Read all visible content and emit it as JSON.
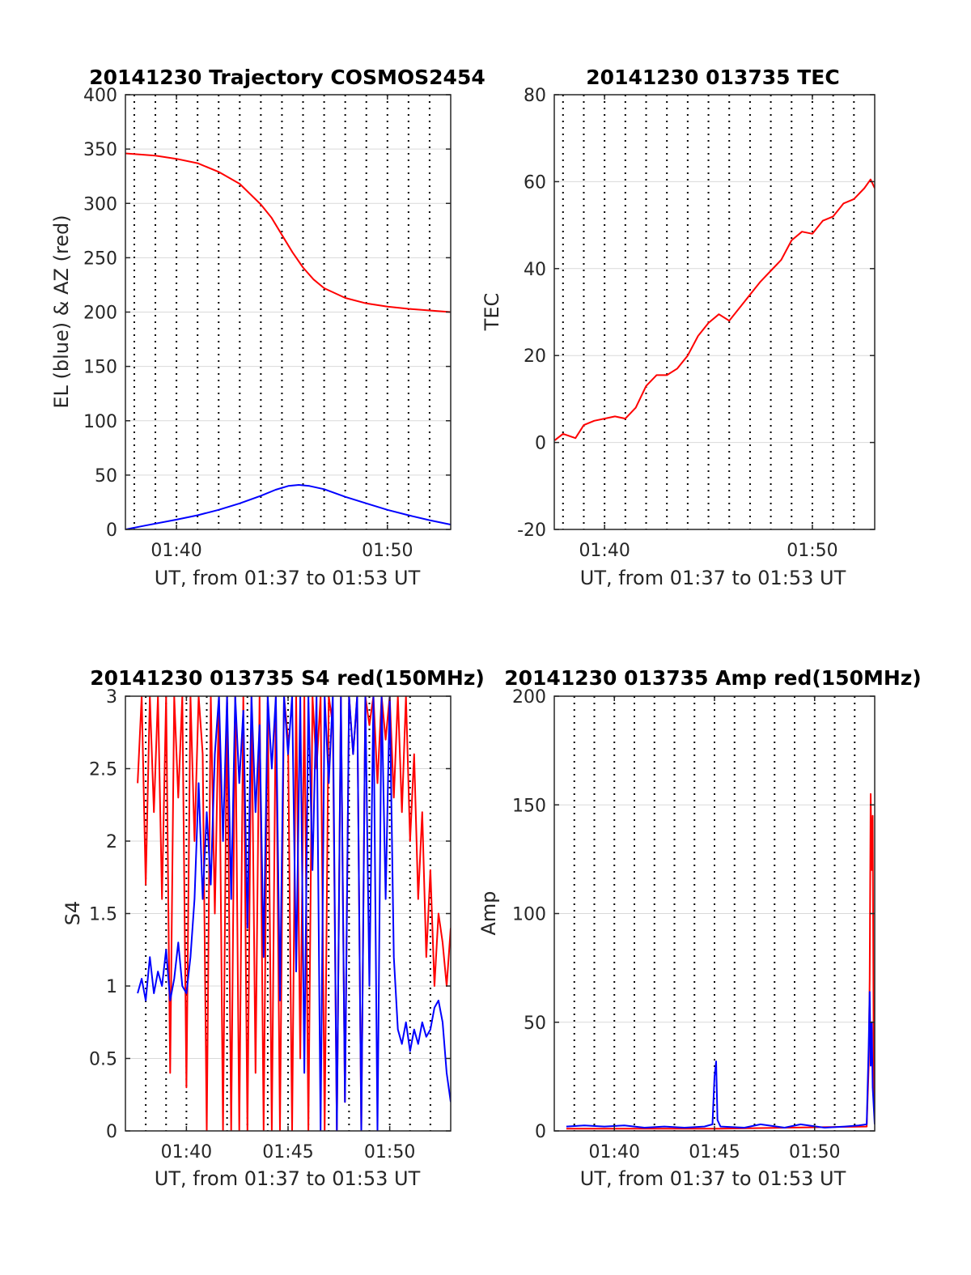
{
  "figure": {
    "background": "#ffffff"
  },
  "colors": {
    "red": "#ff0000",
    "blue": "#0000ff",
    "grid": "#d9d9d9",
    "axis": "#262626"
  },
  "panels": [
    {
      "title": "20141230 Trajectory COSMOS2454",
      "xlabel": "UT, from 01:37 to 01:53 UT",
      "ylabel": "EL (blue) & AZ (red)"
    },
    {
      "title": "20141230 013735 TEC",
      "xlabel": "UT, from 01:37 to 01:53 UT",
      "ylabel": "TEC"
    },
    {
      "title": "20141230 013735 S4 red(150MHz)",
      "xlabel": "UT, from 01:37 to 01:53 UT",
      "ylabel": "S4"
    },
    {
      "title": "20141230 013735 Amp red(150MHz)",
      "xlabel": "UT, from 01:37 to 01:53 UT",
      "ylabel": "Amp"
    }
  ],
  "chart_data": [
    {
      "type": "line",
      "title": "20141230 Trajectory COSMOS2454",
      "xlabel": "UT, from 01:37 to 01:53 UT",
      "ylabel": "EL (blue) & AZ (red)",
      "x_unit": "minutes of hour 01 UT",
      "xlim": [
        37.58,
        53.0
      ],
      "ylim": [
        0,
        400
      ],
      "xticks": [
        {
          "v": 40,
          "label": "01:40"
        },
        {
          "v": 50,
          "label": "01:50"
        }
      ],
      "yticks": [
        0,
        50,
        100,
        150,
        200,
        250,
        300,
        350,
        400
      ],
      "dotted_vlines": [
        38.0,
        39.0,
        40.0,
        41.0,
        42.0,
        43.0,
        44.0,
        45.0,
        46.0,
        47.0,
        48.0,
        49.0,
        50.0,
        51.0,
        52.0
      ],
      "grid": true,
      "series": [
        {
          "color": "#ff0000",
          "x": [
            37.58,
            39,
            40,
            41,
            42,
            43,
            44,
            44.5,
            45,
            45.5,
            46,
            46.5,
            47,
            48,
            49,
            50,
            51,
            52,
            53
          ],
          "y": [
            346,
            344,
            341,
            337,
            329,
            318,
            299,
            287,
            271,
            255,
            241,
            230,
            222,
            213,
            208,
            205,
            203,
            201.5,
            200
          ]
        },
        {
          "color": "#0000ff",
          "x": [
            37.58,
            38.5,
            40,
            41,
            42,
            43,
            44,
            44.7,
            45.3,
            45.8,
            46.3,
            47,
            48,
            49,
            50,
            51,
            52,
            53
          ],
          "y": [
            0,
            3.5,
            9,
            13,
            18,
            24,
            31,
            36.5,
            40,
            41,
            40,
            37,
            30,
            24,
            18,
            13,
            8.5,
            4.5
          ]
        }
      ]
    },
    {
      "type": "line",
      "title": "20141230 013735 TEC",
      "xlabel": "UT, from 01:37 to 01:53 UT",
      "ylabel": "TEC",
      "x_unit": "minutes of hour 01 UT",
      "xlim": [
        37.58,
        53.0
      ],
      "ylim": [
        -20,
        80
      ],
      "xticks": [
        {
          "v": 40,
          "label": "01:40"
        },
        {
          "v": 50,
          "label": "01:50"
        }
      ],
      "yticks": [
        -20,
        0,
        20,
        40,
        60,
        80
      ],
      "dotted_vlines": [
        38.0,
        39.0,
        40.0,
        41.0,
        42.0,
        43.0,
        44.0,
        45.0,
        46.0,
        47.0,
        48.0,
        49.0,
        50.0,
        51.0,
        52.0
      ],
      "grid": true,
      "series": [
        {
          "color": "#ff0000",
          "x": [
            37.6,
            38.0,
            38.6,
            39.0,
            39.5,
            40.0,
            40.5,
            41.0,
            41.5,
            42.0,
            42.5,
            43.0,
            43.5,
            44.0,
            44.5,
            45.0,
            45.5,
            46.0,
            46.5,
            47.0,
            47.5,
            48.0,
            48.5,
            49.0,
            49.5,
            50.0,
            50.5,
            51.0,
            51.5,
            52.0,
            52.5,
            52.8,
            53.0
          ],
          "y": [
            0.5,
            2,
            1,
            4,
            5,
            5.5,
            6,
            5.5,
            8,
            13,
            15.5,
            15.5,
            17,
            20,
            24.5,
            27.5,
            29.5,
            28,
            31,
            34,
            37,
            39.5,
            42,
            46.5,
            48.5,
            48,
            51,
            52,
            55,
            56,
            58.5,
            60.5,
            58.5
          ]
        }
      ]
    },
    {
      "type": "line",
      "title": "20141230 013735 S4 red(150MHz)",
      "xlabel": "UT, from 01:37 to 01:53 UT",
      "ylabel": "S4",
      "x_unit": "minutes of hour 01 UT",
      "xlim": [
        37.0,
        53.0
      ],
      "ylim": [
        0,
        3
      ],
      "xticks": [
        {
          "v": 40,
          "label": "01:40"
        },
        {
          "v": 45,
          "label": "01:45"
        },
        {
          "v": 50,
          "label": "01:50"
        }
      ],
      "yticks": [
        0,
        0.5,
        1,
        1.5,
        2,
        2.5,
        3
      ],
      "dotted_vlines": [
        38.0,
        39.0,
        40.0,
        41.0,
        42.0,
        43.0,
        44.0,
        45.0,
        46.0,
        47.0,
        48.0,
        49.0,
        50.0,
        51.0,
        52.0
      ],
      "grid": true,
      "series": [
        {
          "color": "#ff0000",
          "x": [
            37.6,
            37.8,
            38.0,
            38.2,
            38.4,
            38.6,
            38.8,
            39.0,
            39.2,
            39.4,
            39.6,
            39.8,
            40.0,
            40.2,
            40.4,
            40.6,
            40.8,
            41.0,
            41.2,
            41.4,
            41.6,
            41.8,
            42.0,
            42.2,
            42.4,
            42.6,
            42.8,
            43.0,
            43.2,
            43.4,
            43.6,
            43.8,
            44.0,
            44.2,
            44.4,
            44.6,
            44.8,
            45.0,
            45.2,
            45.4,
            45.6,
            45.8,
            46.0,
            46.2,
            46.4,
            46.6,
            46.8,
            47.0,
            47.2,
            47.4,
            47.6,
            47.8,
            48.0,
            48.2,
            48.4,
            48.6,
            48.8,
            49.0,
            49.2,
            49.4,
            49.6,
            49.8,
            50.0,
            50.2,
            50.4,
            50.6,
            50.8,
            51.0,
            51.2,
            51.4,
            51.6,
            51.8,
            52.0,
            52.2,
            52.4,
            52.6,
            52.8,
            53.0
          ],
          "y": [
            2.4,
            3.0,
            1.7,
            3.0,
            2.2,
            3.0,
            1.6,
            3.0,
            0.4,
            3.0,
            2.3,
            3.0,
            0.3,
            3.0,
            2.0,
            3.0,
            2.6,
            0.0,
            3.0,
            1.5,
            3.0,
            0.0,
            3.0,
            0.0,
            3.0,
            0.0,
            3.0,
            0.0,
            3.0,
            0.4,
            3.0,
            0.0,
            3.0,
            0.0,
            3.0,
            0.0,
            3.0,
            2.7,
            0.0,
            3.0,
            0.5,
            3.0,
            0.0,
            3.0,
            2.5,
            3.0,
            0.0,
            3.0,
            2.8,
            0.0,
            3.0,
            0.2,
            3.0,
            2.6,
            3.0,
            0.0,
            3.0,
            2.8,
            3.0,
            2.4,
            3.0,
            2.7,
            3.0,
            2.3,
            3.0,
            2.2,
            3.0,
            2.0,
            2.6,
            1.6,
            2.2,
            1.2,
            1.8,
            1.0,
            1.5,
            1.3,
            1.0,
            1.4
          ]
        },
        {
          "color": "#0000ff",
          "x": [
            37.6,
            37.8,
            38.0,
            38.2,
            38.4,
            38.6,
            38.8,
            39.0,
            39.2,
            39.4,
            39.6,
            39.8,
            40.0,
            40.2,
            40.4,
            40.6,
            40.8,
            41.0,
            41.2,
            41.4,
            41.6,
            41.8,
            42.0,
            42.2,
            42.4,
            42.6,
            42.8,
            43.0,
            43.2,
            43.4,
            43.6,
            43.8,
            44.0,
            44.2,
            44.4,
            44.6,
            44.8,
            45.0,
            45.2,
            45.4,
            45.6,
            45.8,
            46.0,
            46.2,
            46.4,
            46.6,
            46.8,
            47.0,
            47.2,
            47.4,
            47.6,
            47.8,
            48.0,
            48.2,
            48.4,
            48.6,
            48.8,
            49.0,
            49.2,
            49.4,
            49.6,
            49.8,
            50.0,
            50.2,
            50.4,
            50.6,
            50.8,
            51.0,
            51.2,
            51.4,
            51.6,
            51.8,
            52.0,
            52.2,
            52.4,
            52.6,
            52.8,
            53.0
          ],
          "y": [
            0.95,
            1.05,
            0.9,
            1.2,
            0.95,
            1.1,
            1.0,
            1.25,
            0.9,
            1.05,
            1.3,
            1.0,
            0.95,
            1.2,
            1.6,
            2.4,
            1.6,
            2.2,
            1.7,
            2.6,
            3.0,
            2.0,
            3.0,
            1.6,
            3.0,
            2.4,
            2.9,
            1.4,
            3.0,
            2.2,
            2.8,
            1.2,
            3.0,
            2.5,
            3.0,
            0.9,
            3.0,
            2.6,
            3.0,
            1.1,
            3.0,
            0.4,
            3.0,
            1.8,
            3.0,
            0.0,
            3.0,
            2.4,
            3.0,
            0.0,
            3.0,
            0.2,
            3.0,
            2.6,
            3.0,
            0.0,
            3.0,
            1.0,
            3.0,
            0.0,
            3.0,
            1.6,
            3.0,
            1.2,
            0.7,
            0.6,
            0.75,
            0.55,
            0.7,
            0.6,
            0.75,
            0.65,
            0.7,
            0.85,
            0.9,
            0.75,
            0.4,
            0.2
          ]
        }
      ]
    },
    {
      "type": "line",
      "title": "20141230 013735 Amp red(150MHz)",
      "xlabel": "UT, from 01:37 to 01:53 UT",
      "ylabel": "Amp",
      "x_unit": "minutes of hour 01 UT",
      "xlim": [
        37.0,
        53.0
      ],
      "ylim": [
        0,
        200
      ],
      "xticks": [
        {
          "v": 40,
          "label": "01:40"
        },
        {
          "v": 45,
          "label": "01:45"
        },
        {
          "v": 50,
          "label": "01:50"
        }
      ],
      "yticks": [
        0,
        50,
        100,
        150,
        200
      ],
      "dotted_vlines": [
        38.0,
        39.0,
        40.0,
        41.0,
        42.0,
        43.0,
        44.0,
        45.0,
        46.0,
        47.0,
        48.0,
        49.0,
        50.0,
        51.0,
        52.0
      ],
      "grid": true,
      "series": [
        {
          "color": "#ff0000",
          "x": [
            37.6,
            45.0,
            52.6,
            52.7,
            52.75,
            52.8,
            52.85,
            52.9,
            52.95,
            53.0
          ],
          "y": [
            1,
            1,
            2,
            30,
            70,
            155,
            120,
            145,
            30,
            5
          ]
        },
        {
          "color": "#0000ff",
          "x": [
            37.6,
            38.5,
            39.5,
            40.5,
            41.5,
            42.5,
            43.5,
            44.5,
            44.9,
            45.0,
            45.08,
            45.15,
            45.3,
            46.5,
            47.3,
            48.5,
            49.3,
            50.5,
            51.5,
            52.2,
            52.6,
            52.7,
            52.75,
            52.8,
            52.85,
            52.9,
            53.0
          ],
          "y": [
            2,
            2.5,
            2,
            2.5,
            1.5,
            2,
            1.5,
            2,
            3,
            25,
            32,
            5,
            2,
            1.5,
            3,
            1.5,
            3,
            1.5,
            2,
            2.5,
            3,
            40,
            64,
            30,
            50,
            20,
            3
          ]
        }
      ]
    }
  ]
}
